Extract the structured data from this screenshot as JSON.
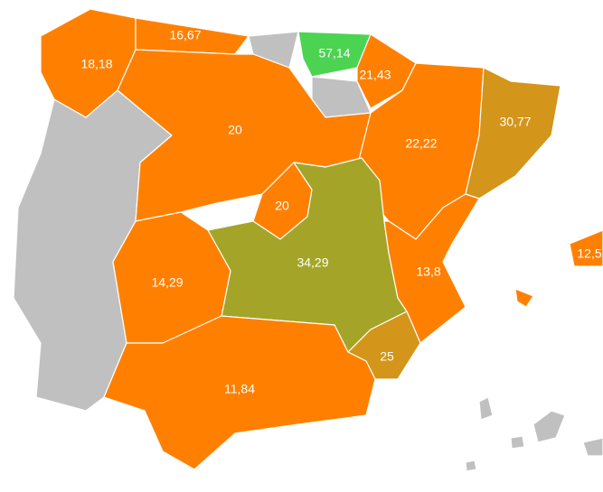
{
  "regions": [
    {
      "label": "18,18",
      "color": "#ff8000"
    },
    {
      "label": "16,67",
      "color": "#ff8000"
    },
    {
      "label": "57,14",
      "color": "#4cd352"
    },
    {
      "label": "21,43",
      "color": "#ff8000"
    },
    {
      "label": "20",
      "color": "#ff8000"
    },
    {
      "label": "22,22",
      "color": "#ff8000"
    },
    {
      "label": "30,77",
      "color": "#d3951a"
    },
    {
      "label": "20",
      "color": "#ff8000"
    },
    {
      "label": "34,29",
      "color": "#a4a528"
    },
    {
      "label": "13,8",
      "color": "#ff8000"
    },
    {
      "label": "25",
      "color": "#d3951a"
    },
    {
      "label": "14,29",
      "color": "#ff8000"
    },
    {
      "label": "11,84",
      "color": "#ff8000"
    },
    {
      "label": "12,5",
      "color": "#ff8000"
    }
  ]
}
